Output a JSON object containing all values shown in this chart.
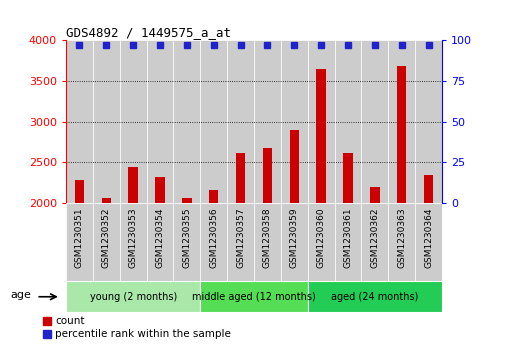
{
  "title": "GDS4892 / 1449575_a_at",
  "samples": [
    "GSM1230351",
    "GSM1230352",
    "GSM1230353",
    "GSM1230354",
    "GSM1230355",
    "GSM1230356",
    "GSM1230357",
    "GSM1230358",
    "GSM1230359",
    "GSM1230360",
    "GSM1230361",
    "GSM1230362",
    "GSM1230363",
    "GSM1230364"
  ],
  "counts": [
    2290,
    2060,
    2450,
    2320,
    2060,
    2160,
    2610,
    2680,
    2900,
    3650,
    2620,
    2200,
    3680,
    2350
  ],
  "percentile_ranks": [
    97,
    97,
    97,
    97,
    97,
    97,
    97,
    97,
    97,
    97,
    97,
    97,
    97,
    97
  ],
  "groups": [
    {
      "label": "young (2 months)",
      "start": 0,
      "end": 5,
      "color": "#aae8aa"
    },
    {
      "label": "middle aged (12 months)",
      "start": 5,
      "end": 9,
      "color": "#55dd55"
    },
    {
      "label": "aged (24 months)",
      "start": 9,
      "end": 14,
      "color": "#22cc55"
    }
  ],
  "ylim_left": [
    2000,
    4000
  ],
  "ylim_right": [
    0,
    100
  ],
  "yticks_left": [
    2000,
    2500,
    3000,
    3500,
    4000
  ],
  "yticks_right": [
    0,
    25,
    50,
    75,
    100
  ],
  "bar_color": "#CC0000",
  "dot_color": "#2222CC",
  "col_bg_color": "#cccccc",
  "plot_bg_color": "#ffffff",
  "background_color": "#ffffff",
  "legend_count_color": "#CC0000",
  "legend_dot_color": "#2222CC",
  "bar_width": 0.35
}
